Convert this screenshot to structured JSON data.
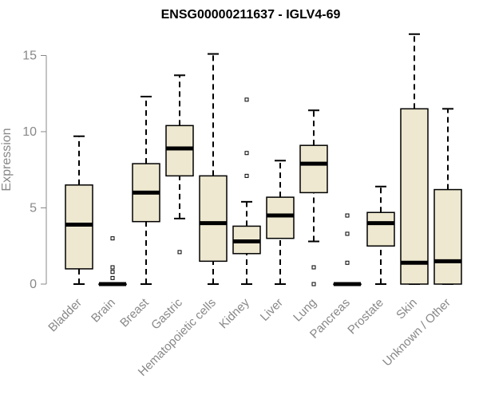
{
  "chart_data": {
    "type": "box",
    "title": "ENSG00000211637 - IGLV4-69",
    "ylabel": "Expression",
    "xlabel": "",
    "ylim": [
      0,
      16.5
    ],
    "yticks": [
      0,
      5,
      10,
      15
    ],
    "box_fill": "#EEE8D0",
    "stroke": "#000000",
    "categories": [
      "Bladder",
      "Brain",
      "Breast",
      "Gastric",
      "Hematopoietic cells",
      "Kidney",
      "Liver",
      "Lung",
      "Pancreas",
      "Prostate",
      "Skin",
      "Unknown / Other"
    ],
    "boxes": [
      {
        "whisker_low": 0,
        "q1": 1.0,
        "median": 3.9,
        "q3": 6.5,
        "whisker_high": 9.7,
        "outliers": []
      },
      {
        "whisker_low": 0,
        "q1": 0,
        "median": 0,
        "q3": 0,
        "whisker_high": 0,
        "outliers": [
          0.4,
          0.8,
          1.1,
          3.0
        ]
      },
      {
        "whisker_low": 0,
        "q1": 4.1,
        "median": 6.0,
        "q3": 7.9,
        "whisker_high": 12.3,
        "outliers": []
      },
      {
        "whisker_low": 4.3,
        "q1": 7.1,
        "median": 8.9,
        "q3": 10.4,
        "whisker_high": 13.7,
        "outliers": [
          2.1
        ]
      },
      {
        "whisker_low": 0,
        "q1": 1.5,
        "median": 4.0,
        "q3": 7.1,
        "whisker_high": 15.1,
        "outliers": []
      },
      {
        "whisker_low": 0,
        "q1": 2.0,
        "median": 2.8,
        "q3": 3.8,
        "whisker_high": 5.4,
        "outliers": [
          7.1,
          8.6,
          12.1
        ]
      },
      {
        "whisker_low": 0,
        "q1": 3.0,
        "median": 4.5,
        "q3": 5.7,
        "whisker_high": 8.1,
        "outliers": []
      },
      {
        "whisker_low": 2.8,
        "q1": 6.0,
        "median": 7.9,
        "q3": 9.1,
        "whisker_high": 11.4,
        "outliers": [
          0,
          1.1
        ]
      },
      {
        "whisker_low": 0,
        "q1": 0,
        "median": 0,
        "q3": 0,
        "whisker_high": 0,
        "outliers": [
          1.4,
          3.3,
          4.5
        ]
      },
      {
        "whisker_low": 0,
        "q1": 2.5,
        "median": 4.0,
        "q3": 4.7,
        "whisker_high": 6.4,
        "outliers": []
      },
      {
        "whisker_low": 0,
        "q1": 0,
        "median": 1.4,
        "q3": 11.5,
        "whisker_high": 16.4,
        "outliers": []
      },
      {
        "whisker_low": 0,
        "q1": 0,
        "median": 1.5,
        "q3": 6.2,
        "whisker_high": 11.5,
        "outliers": []
      }
    ]
  }
}
